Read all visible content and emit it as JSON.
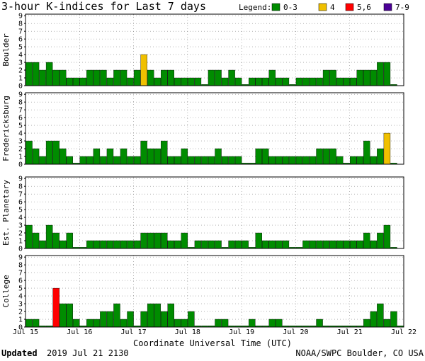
{
  "header": {
    "title": "3-hour K-indices for Last 7 days",
    "legend_label": "Legend:",
    "legend": [
      {
        "label": "0-3",
        "color": "#008c00"
      },
      {
        "label": "4",
        "color": "#f0c000"
      },
      {
        "label": "5,6",
        "color": "#ff0000"
      },
      {
        "label": "7-9",
        "color": "#4b0096"
      }
    ]
  },
  "footer": {
    "updated_label": "Updated",
    "updated_value": "2019 Jul 21 2130",
    "credit": "NOAA/SWPC Boulder, CO USA"
  },
  "chart_data": {
    "type": "bar",
    "title": "3-hour K-indices for Last 7 days",
    "xlabel": "Coordinate Universal Time (UTC)",
    "ylim": [
      0,
      9
    ],
    "y_ticks": [
      "0",
      "1",
      "2",
      "3",
      "4",
      "5",
      "6",
      "7",
      "8",
      "9"
    ],
    "x_ticks": [
      "Jul 15",
      "Jul 16",
      "Jul 17",
      "Jul 18",
      "Jul 19",
      "Jul 20",
      "Jul 21",
      "Jul 22"
    ],
    "bars_per_day": 8,
    "grid": "dotted",
    "color_scale": [
      {
        "range": "0-3",
        "color": "#008c00"
      },
      {
        "range": "4",
        "color": "#f0c000"
      },
      {
        "range": "5,6",
        "color": "#ff0000"
      },
      {
        "range": "7-9",
        "color": "#4b0096"
      }
    ],
    "panels": [
      {
        "name": "Boulder",
        "values": [
          3,
          3,
          2,
          3,
          2,
          2,
          1,
          1,
          1,
          2,
          2,
          2,
          1,
          2,
          2,
          1,
          2,
          4,
          2,
          1,
          2,
          2,
          1,
          1,
          1,
          1,
          0,
          2,
          2,
          1,
          2,
          1,
          0,
          1,
          1,
          1,
          2,
          1,
          1,
          0,
          1,
          1,
          1,
          1,
          2,
          2,
          1,
          1,
          1,
          2,
          2,
          2,
          3,
          3,
          0
        ]
      },
      {
        "name": "Fredericksburg",
        "values": [
          3,
          2,
          1,
          3,
          3,
          2,
          1,
          0,
          1,
          1,
          2,
          1,
          2,
          1,
          2,
          1,
          1,
          3,
          2,
          2,
          3,
          1,
          1,
          2,
          1,
          1,
          1,
          1,
          2,
          1,
          1,
          1,
          0,
          0,
          2,
          2,
          1,
          1,
          1,
          1,
          1,
          1,
          1,
          2,
          2,
          2,
          1,
          0,
          1,
          1,
          3,
          1,
          2,
          4,
          0
        ]
      },
      {
        "name": "Est. Planetary",
        "values": [
          3,
          2,
          1,
          3,
          2,
          1,
          2,
          0,
          0,
          1,
          1,
          1,
          1,
          1,
          1,
          1,
          1,
          2,
          2,
          2,
          2,
          1,
          1,
          2,
          0,
          1,
          1,
          1,
          1,
          0,
          1,
          1,
          1,
          0,
          2,
          1,
          1,
          1,
          1,
          0,
          0,
          1,
          1,
          1,
          1,
          1,
          1,
          1,
          1,
          1,
          2,
          1,
          2,
          3,
          0
        ]
      },
      {
        "name": "College",
        "values": [
          1,
          1,
          0,
          0,
          5,
          3,
          3,
          1,
          0,
          1,
          1,
          2,
          2,
          3,
          1,
          2,
          0,
          2,
          3,
          3,
          2,
          3,
          1,
          1,
          2,
          0,
          0,
          0,
          1,
          1,
          0,
          0,
          0,
          1,
          0,
          0,
          1,
          1,
          0,
          0,
          0,
          0,
          0,
          1,
          0,
          0,
          0,
          0,
          0,
          0,
          1,
          2,
          3,
          1,
          2,
          0
        ]
      }
    ]
  }
}
